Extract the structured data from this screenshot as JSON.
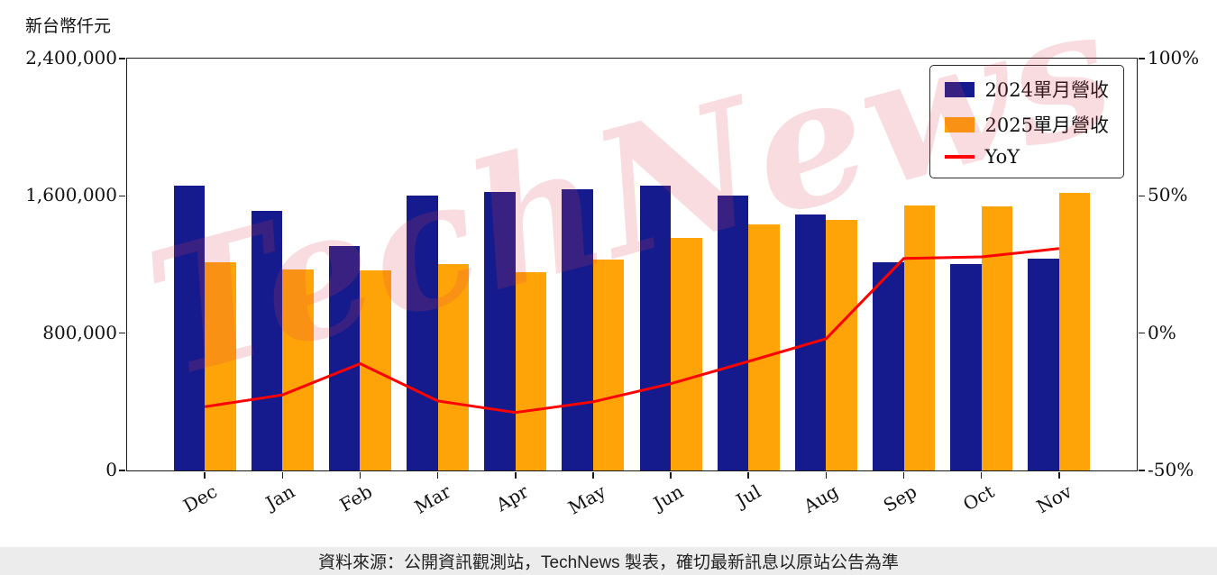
{
  "page": {
    "y_axis_title": "新台幣仟元",
    "watermark": "TechNews",
    "footer": "資料來源：公開資訊觀測站，TechNews 製表，確切最新訊息以原站公告為準"
  },
  "chart_data": {
    "type": "bar",
    "title": "",
    "categories": [
      "Dec",
      "Jan",
      "Feb",
      "Mar",
      "Apr",
      "May",
      "Jun",
      "Jul",
      "Aug",
      "Sep",
      "Oct",
      "Nov"
    ],
    "series": [
      {
        "name": "2024單月營收",
        "type": "bar",
        "color": "#151b8d",
        "values": [
          1660000,
          1510000,
          1310000,
          1600000,
          1625000,
          1640000,
          1660000,
          1600000,
          1490000,
          1215000,
          1205000,
          1235000
        ]
      },
      {
        "name": "2025單月營收",
        "type": "bar",
        "color": "#ffa408",
        "values": [
          1215000,
          1170000,
          1165000,
          1205000,
          1155000,
          1230000,
          1355000,
          1435000,
          1460000,
          1545000,
          1540000,
          1615000
        ]
      },
      {
        "name": "YoY",
        "type": "line",
        "color": "#ff0000",
        "values": [
          -26.8,
          -22.5,
          -11.1,
          -24.7,
          -28.9,
          -25.0,
          -18.4,
          -10.3,
          -2.0,
          27.2,
          27.8,
          30.8
        ]
      }
    ],
    "left_axis": {
      "label": "新台幣仟元",
      "min": 0,
      "max": 2400000,
      "ticks": [
        {
          "label": "0",
          "value": 0
        },
        {
          "label": "800,000",
          "value": 800000
        },
        {
          "label": "1,600,000",
          "value": 1600000
        },
        {
          "label": "2,400,000",
          "value": 2400000
        }
      ]
    },
    "right_axis": {
      "min": -50,
      "max": 100,
      "ticks": [
        {
          "label": "-50%",
          "value": -50
        },
        {
          "label": "0%",
          "value": 0
        },
        {
          "label": "50%",
          "value": 50
        },
        {
          "label": "100%",
          "value": 100
        }
      ]
    },
    "legend_position": "upper right",
    "grid": false
  }
}
